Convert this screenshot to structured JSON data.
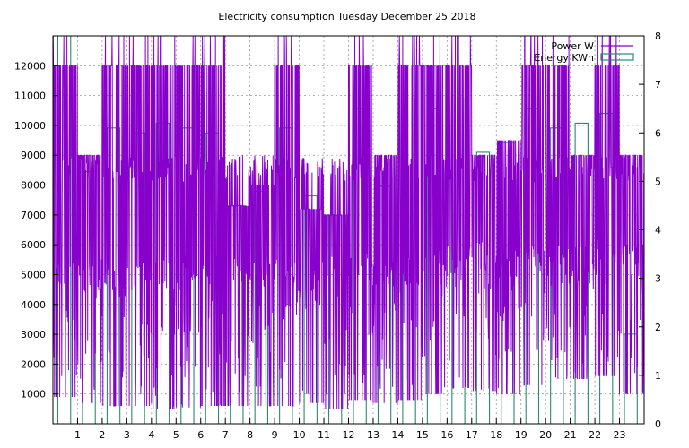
{
  "chart_data": {
    "type": "bar",
    "title": "Electricity consumption Tuesday December 25 2018",
    "x": {
      "min": 0,
      "max": 24,
      "ticks": [
        1,
        2,
        3,
        4,
        5,
        6,
        7,
        8,
        9,
        10,
        11,
        12,
        13,
        14,
        15,
        16,
        17,
        18,
        19,
        20,
        21,
        22,
        23
      ]
    },
    "y_left": {
      "min": 0,
      "max": 13000,
      "ticks": [
        1000,
        2000,
        3000,
        4000,
        5000,
        6000,
        7000,
        8000,
        9000,
        10000,
        11000,
        12000
      ]
    },
    "y_right": {
      "min": 0,
      "max": 8,
      "ticks": [
        0,
        1,
        2,
        3,
        4,
        5,
        6,
        7,
        8
      ]
    },
    "grid": true,
    "legend": {
      "position": "top-right",
      "entries": [
        "Power W",
        "Energy KWh"
      ]
    },
    "series": [
      {
        "name": "Energy KWh",
        "axis": "right",
        "color": "#2a8a74",
        "style": "step",
        "values": [
          8.0,
          5.2,
          6.1,
          6.0,
          6.2,
          6.1,
          6.0,
          4.5,
          4.8,
          6.1,
          4.7,
          4.3,
          6.5,
          4.9,
          6.7,
          6.5,
          6.7,
          5.6,
          5.8,
          6.5,
          6.1,
          6.2,
          6.4,
          1.85
        ]
      },
      {
        "name": "Power W",
        "axis": "left",
        "color": "#8800cc",
        "style": "line",
        "hourly_pattern": [
          {
            "base": 5200,
            "peak": 12000,
            "low": 900
          },
          {
            "base": 5000,
            "peak": 9000,
            "low": 700
          },
          {
            "base": 5000,
            "peak": 12000,
            "low": 600
          },
          {
            "base": 5000,
            "peak": 12000,
            "low": 600
          },
          {
            "base": 5000,
            "peak": 12000,
            "low": 500
          },
          {
            "base": 5000,
            "peak": 12000,
            "low": 550
          },
          {
            "base": 5000,
            "peak": 12000,
            "low": 600
          },
          {
            "base": 5000,
            "peak": 7300,
            "low": 600
          },
          {
            "base": 5000,
            "peak": 8000,
            "low": 600
          },
          {
            "base": 5000,
            "peak": 12000,
            "low": 600
          },
          {
            "base": 5000,
            "peak": 7200,
            "low": 700
          },
          {
            "base": 5000,
            "peak": 7000,
            "low": 500
          },
          {
            "base": 5200,
            "peak": 12000,
            "low": 800
          },
          {
            "base": 5200,
            "peak": 9000,
            "low": 700
          },
          {
            "base": 5200,
            "peak": 12000,
            "low": 800
          },
          {
            "base": 5500,
            "peak": 12000,
            "low": 1000
          },
          {
            "base": 5500,
            "peak": 12000,
            "low": 1200
          },
          {
            "base": 5500,
            "peak": 9000,
            "low": 1100
          },
          {
            "base": 5500,
            "peak": 9500,
            "low": 1000
          },
          {
            "base": 5500,
            "peak": 12000,
            "low": 1300
          },
          {
            "base": 5500,
            "peak": 12000,
            "low": 1500
          },
          {
            "base": 5500,
            "peak": 9000,
            "low": 1500
          },
          {
            "base": 5700,
            "peak": 12000,
            "low": 1600
          },
          {
            "base": 5500,
            "peak": 9000,
            "low": 1000
          }
        ]
      }
    ]
  }
}
